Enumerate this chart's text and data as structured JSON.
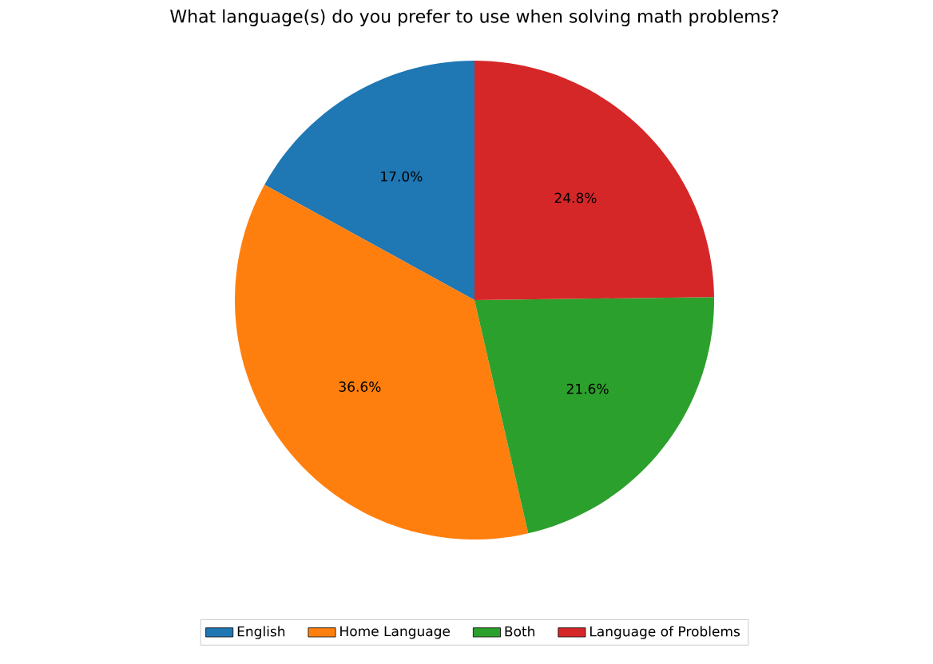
{
  "chart_data": {
    "type": "pie",
    "title": "What language(s) do you prefer to use when solving math problems?",
    "categories": [
      "English",
      "Home Language",
      "Both",
      "Language of Problems"
    ],
    "values": [
      17.0,
      36.6,
      21.6,
      24.8
    ],
    "value_labels": [
      "17.0%",
      "36.6%",
      "21.6%",
      "24.8%"
    ],
    "colors": [
      "#1f77b4",
      "#ff7f0e",
      "#2ca02c",
      "#d62728"
    ],
    "legend": "bottom"
  }
}
